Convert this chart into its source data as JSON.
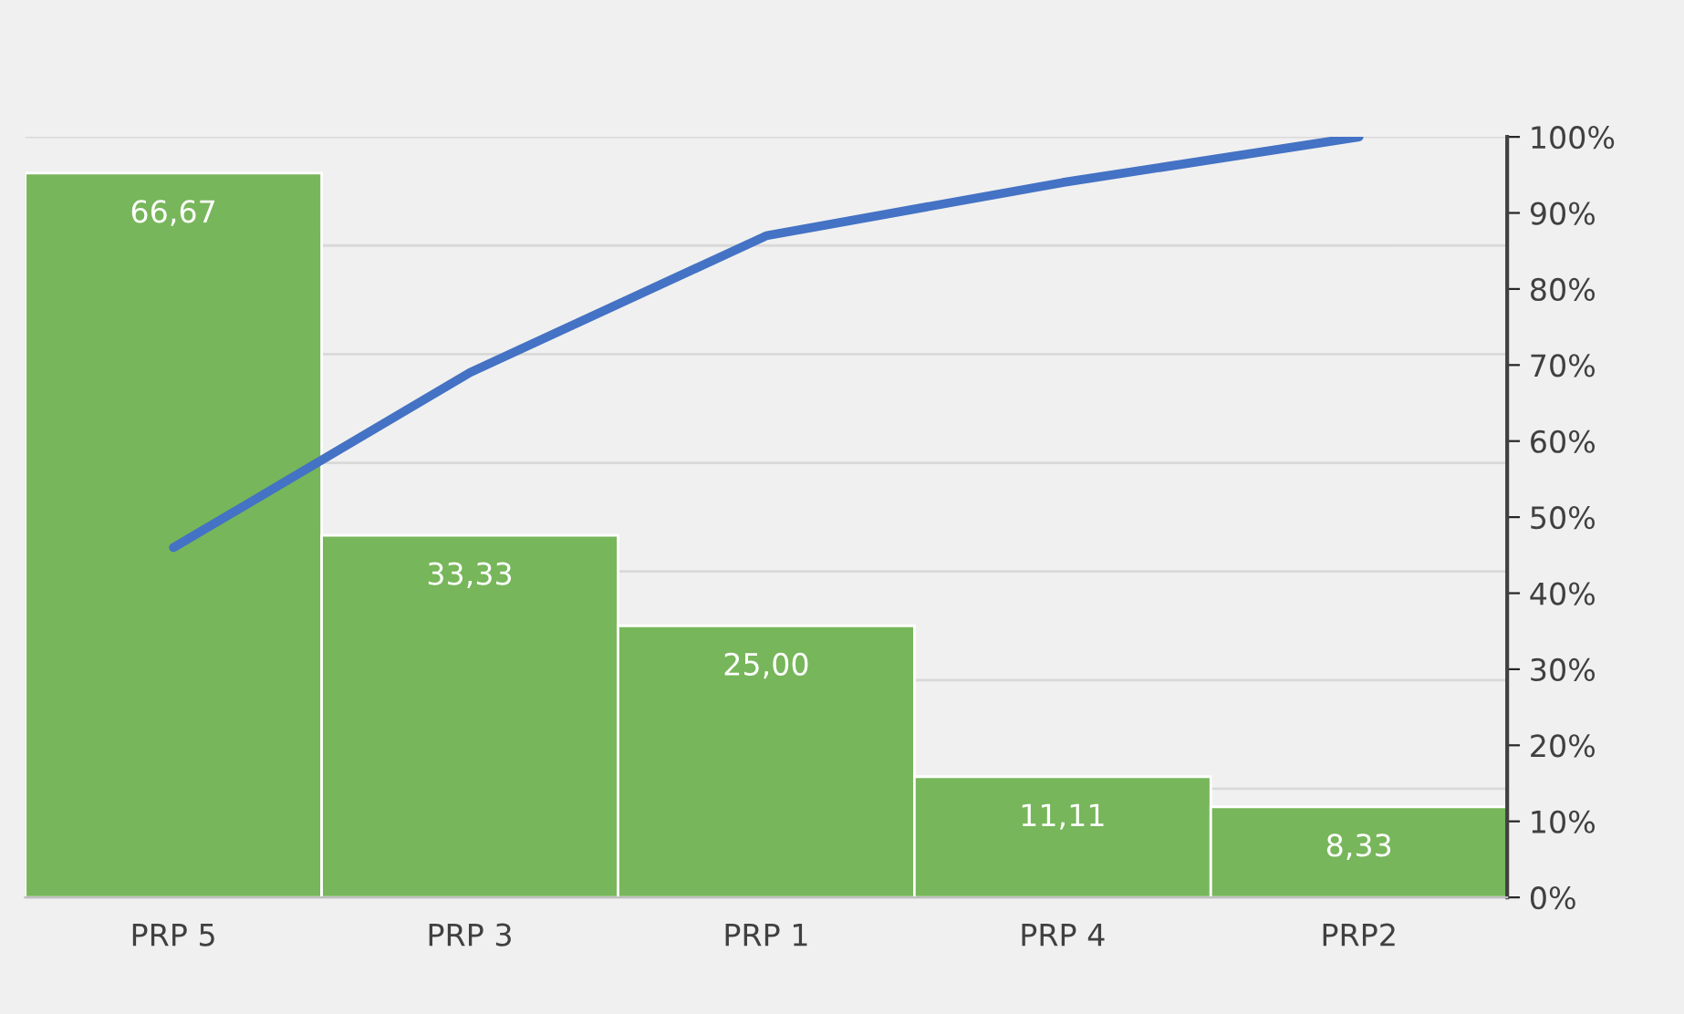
{
  "chart_data": {
    "type": "bar",
    "categories": [
      "PRP 5",
      "PRP 3",
      "PRP 1",
      "PRP 4",
      "PRP2"
    ],
    "series": [
      {
        "color": "#77b65a",
        "values": [
          66.67,
          33.33,
          25.0,
          11.11,
          8.33
        ],
        "value_labels": [
          "66,67",
          "33,33",
          "25,00",
          "11,11",
          "8,33"
        ]
      },
      {
        "type": "line",
        "axis": "y2",
        "color": "#4472c4",
        "values": [
          46,
          69,
          87,
          94,
          100
        ]
      }
    ],
    "ylim": [
      0,
      70
    ],
    "yticks": [
      {
        "value": 0,
        "label": null
      },
      {
        "value": 10,
        "label": null
      },
      {
        "value": 20,
        "label": null
      },
      {
        "value": 30,
        "label": null
      },
      {
        "value": 40,
        "label": null
      },
      {
        "value": 50,
        "label": null
      },
      {
        "value": 60,
        "label": null
      },
      {
        "value": 70,
        "label": null
      }
    ],
    "y2lim": [
      0,
      100
    ],
    "y2ticks": [
      {
        "value": 0,
        "label": "0%"
      },
      {
        "value": 10,
        "label": "10%"
      },
      {
        "value": 20,
        "label": "20%"
      },
      {
        "value": 30,
        "label": "30%"
      },
      {
        "value": 40,
        "label": "40%"
      },
      {
        "value": 50,
        "label": "50%"
      },
      {
        "value": 60,
        "label": "60%"
      },
      {
        "value": 70,
        "label": "70%"
      },
      {
        "value": 80,
        "label": "80%"
      },
      {
        "value": 90,
        "label": "90%"
      },
      {
        "value": 100,
        "label": "100%"
      }
    ],
    "grid": "y",
    "legend": false,
    "marker": "none",
    "line_style": "solid"
  }
}
